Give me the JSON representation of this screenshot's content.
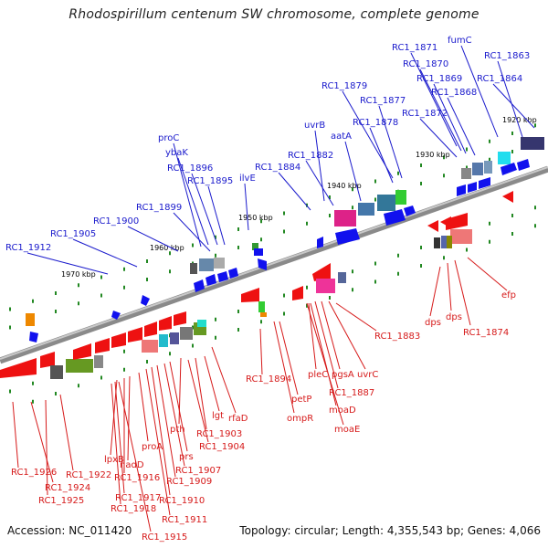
{
  "title": "Rhodospirillum centenum SW chromosome, complete genome",
  "footer": {
    "accession": "Accession: NC_011420",
    "stats": "Topology: circular; Length: 4,355,543 bp; Genes: 4,066"
  },
  "colors": {
    "forward_label": "#1a1acc",
    "reverse_label": "#d61a1a"
  },
  "kbp_marks": [
    "1920 kbp",
    "1930 kbp",
    "1940 kbp",
    "1950 kbp",
    "1960 kbp",
    "1970 kbp"
  ],
  "forward_labels": [
    "fumC",
    "RC1_1863",
    "RC1_1871",
    "RC1_1870",
    "RC1_1869",
    "RC1_1864",
    "RC1_1868",
    "RC1_1879",
    "RC1_1877",
    "RC1_1878",
    "RC1_1872",
    "uvrB",
    "aatA",
    "RC1_1882",
    "RC1_1884",
    "proC",
    "ybaK",
    "RC1_1896",
    "RC1_1895",
    "ilvE",
    "RC1_1899",
    "RC1_1900",
    "RC1_1905",
    "RC1_1912"
  ],
  "reverse_labels": [
    "efp",
    "dps",
    "dps",
    "RC1_1874",
    "RC1_1883",
    "uvrC",
    "pgsA",
    "RC1_1887",
    "pleC",
    "moaD",
    "moaE",
    "petP",
    "ompR",
    "RC1_1894",
    "rfaD",
    "lgt",
    "RC1_1903",
    "RC1_1904",
    "pth",
    "prs",
    "RC1_1907",
    "RC1_1909",
    "RC1_1910",
    "RC1_1911",
    "proA",
    "nadD",
    "RC1_1916",
    "lpxB",
    "RC1_1917",
    "RC1_1918",
    "RC1_1915",
    "RC1_1926",
    "RC1_1924",
    "RC1_1922",
    "RC1_1925"
  ]
}
